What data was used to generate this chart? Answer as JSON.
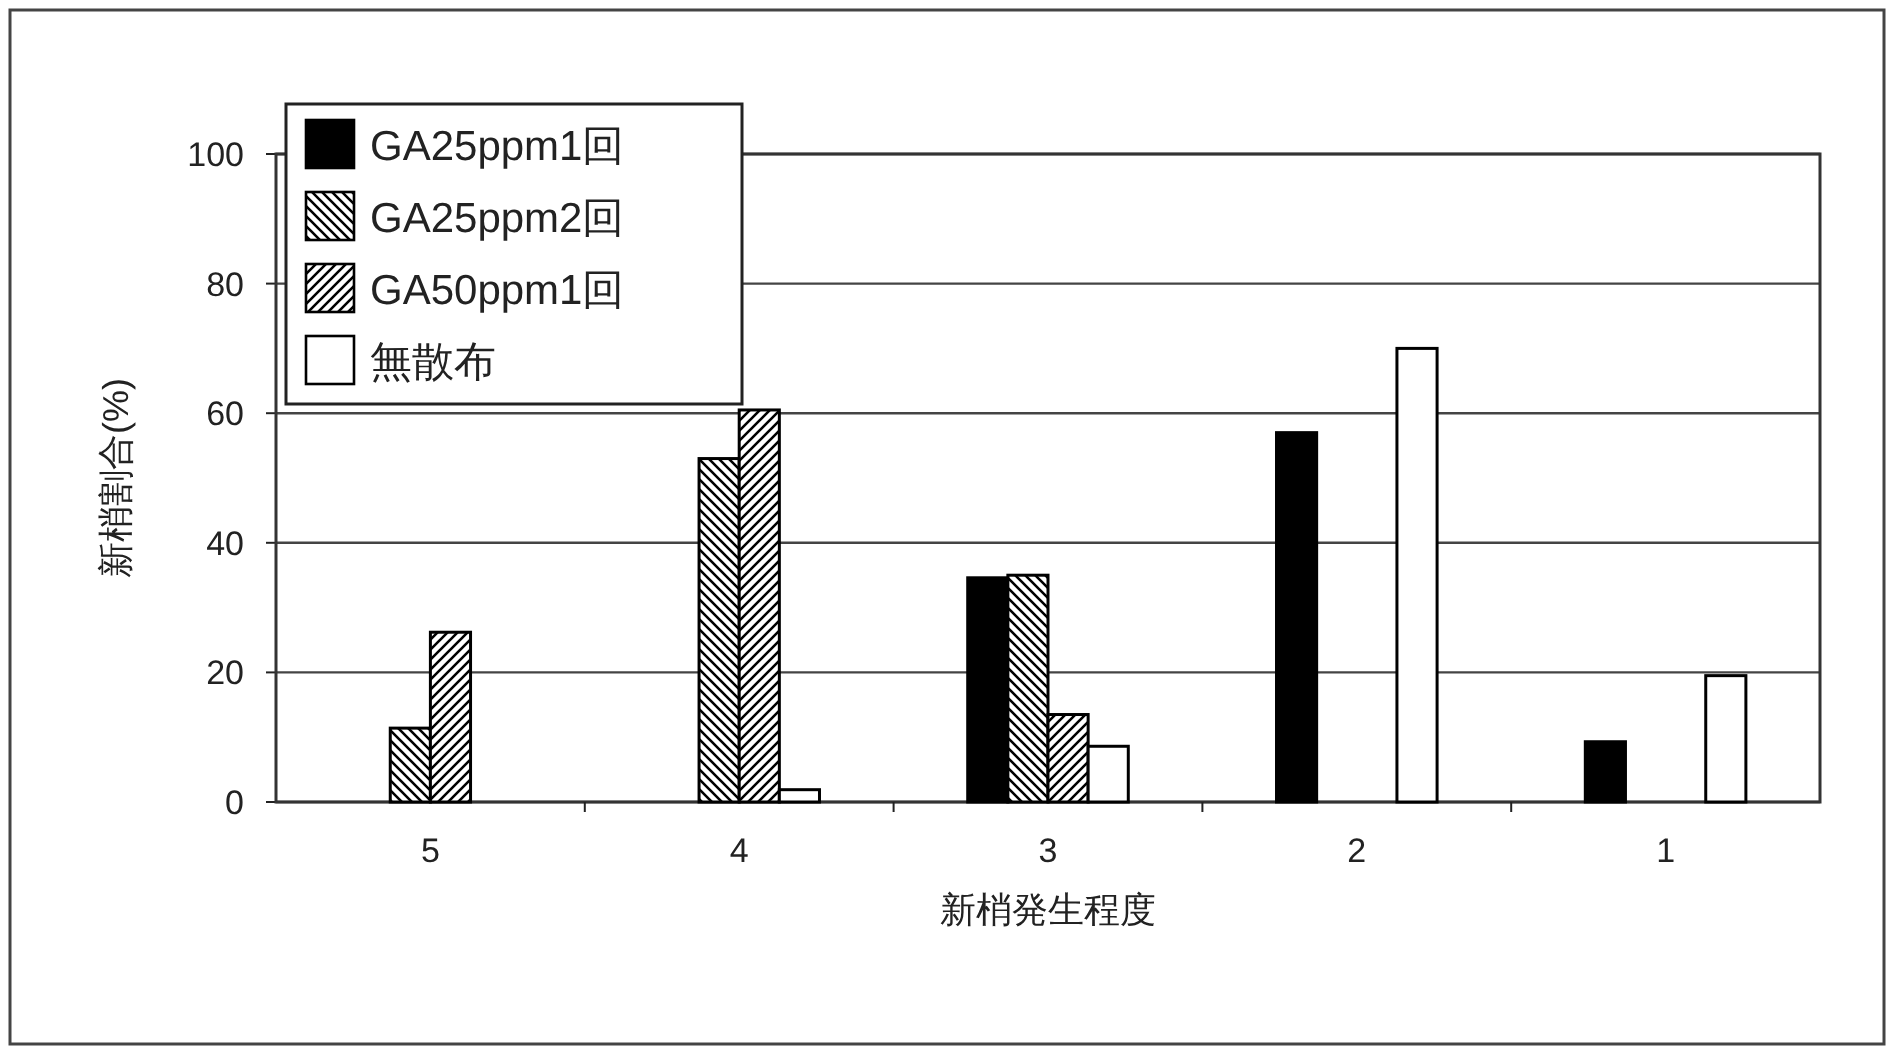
{
  "chart_data": {
    "type": "bar",
    "xlabel": "新梢発生程度",
    "ylabel": "新梢割合(%)",
    "categories": [
      "5",
      "4",
      "3",
      "2",
      "1"
    ],
    "series": [
      {
        "name": "GA25ppm1回",
        "color": "#000000",
        "values": [
          0,
          0,
          34.6,
          57,
          9.3
        ]
      },
      {
        "name": "GA25ppm2回",
        "color": "#000000",
        "values": [
          11.4,
          53,
          35,
          0,
          0
        ]
      },
      {
        "name": "GA50ppm1回",
        "color": "#000000",
        "values": [
          26.2,
          60.5,
          13.5,
          0,
          0
        ]
      },
      {
        "name": "無散布",
        "color": "#ffffff",
        "values": [
          0,
          1.9,
          8.6,
          70,
          19.5
        ]
      }
    ],
    "ylim": [
      0,
      100
    ],
    "yticks": [
      0,
      20,
      40,
      60,
      80,
      100
    ],
    "grid": "y",
    "legend": "top left"
  }
}
